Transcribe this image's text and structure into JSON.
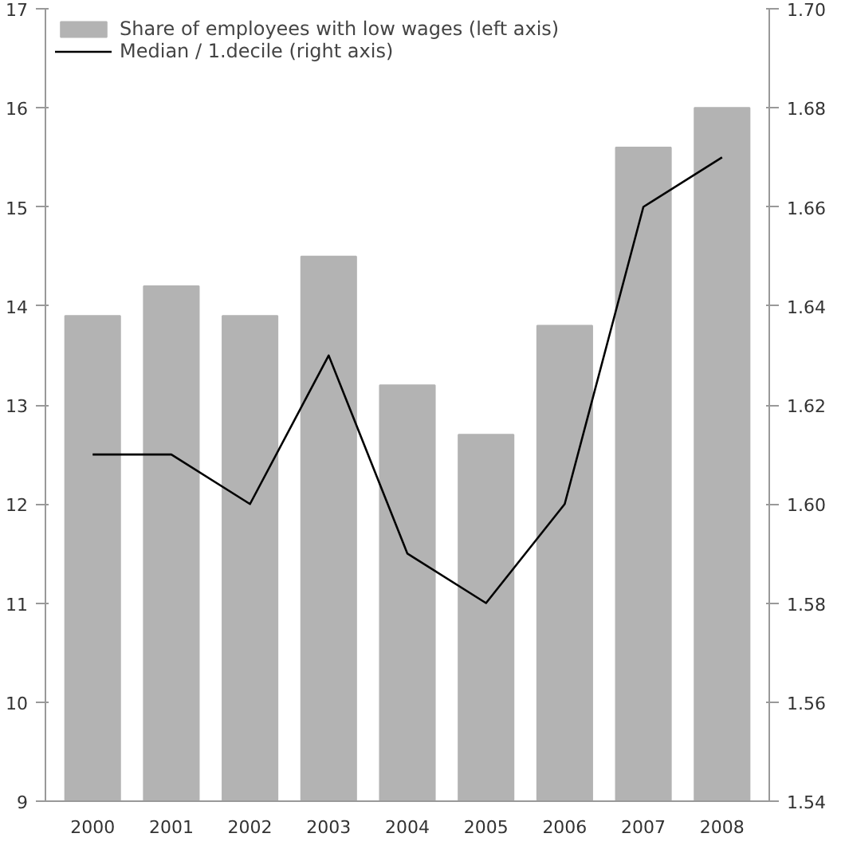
{
  "chart_data": {
    "type": "bar",
    "categories": [
      "2000",
      "2001",
      "2002",
      "2003",
      "2004",
      "2005",
      "2006",
      "2007",
      "2008"
    ],
    "series": [
      {
        "name": "Share of employees with low wages (left axis)",
        "color": "#b3b3b3",
        "values": [
          13.9,
          14.2,
          13.9,
          14.5,
          13.2,
          12.7,
          13.8,
          15.6,
          16.0
        ]
      },
      {
        "name": "Median / 1.decile (right axis)",
        "type": "line",
        "axis": "y2",
        "color": "#000000",
        "values": [
          1.61,
          1.61,
          1.6,
          1.63,
          1.59,
          1.58,
          1.6,
          1.66,
          1.67
        ]
      }
    ],
    "ylim": [
      9,
      17
    ],
    "yticks": [
      9,
      10,
      11,
      12,
      13,
      14,
      15,
      16,
      17
    ],
    "y2lim": [
      1.54,
      1.7
    ],
    "y2ticks": [
      1.54,
      1.56,
      1.58,
      {
        "value": 1.6,
        "label": "1.60"
      },
      1.62,
      1.64,
      1.66,
      1.68,
      {
        "value": 1.7,
        "label": "1.70"
      }
    ],
    "grid": false,
    "legend": "top"
  }
}
